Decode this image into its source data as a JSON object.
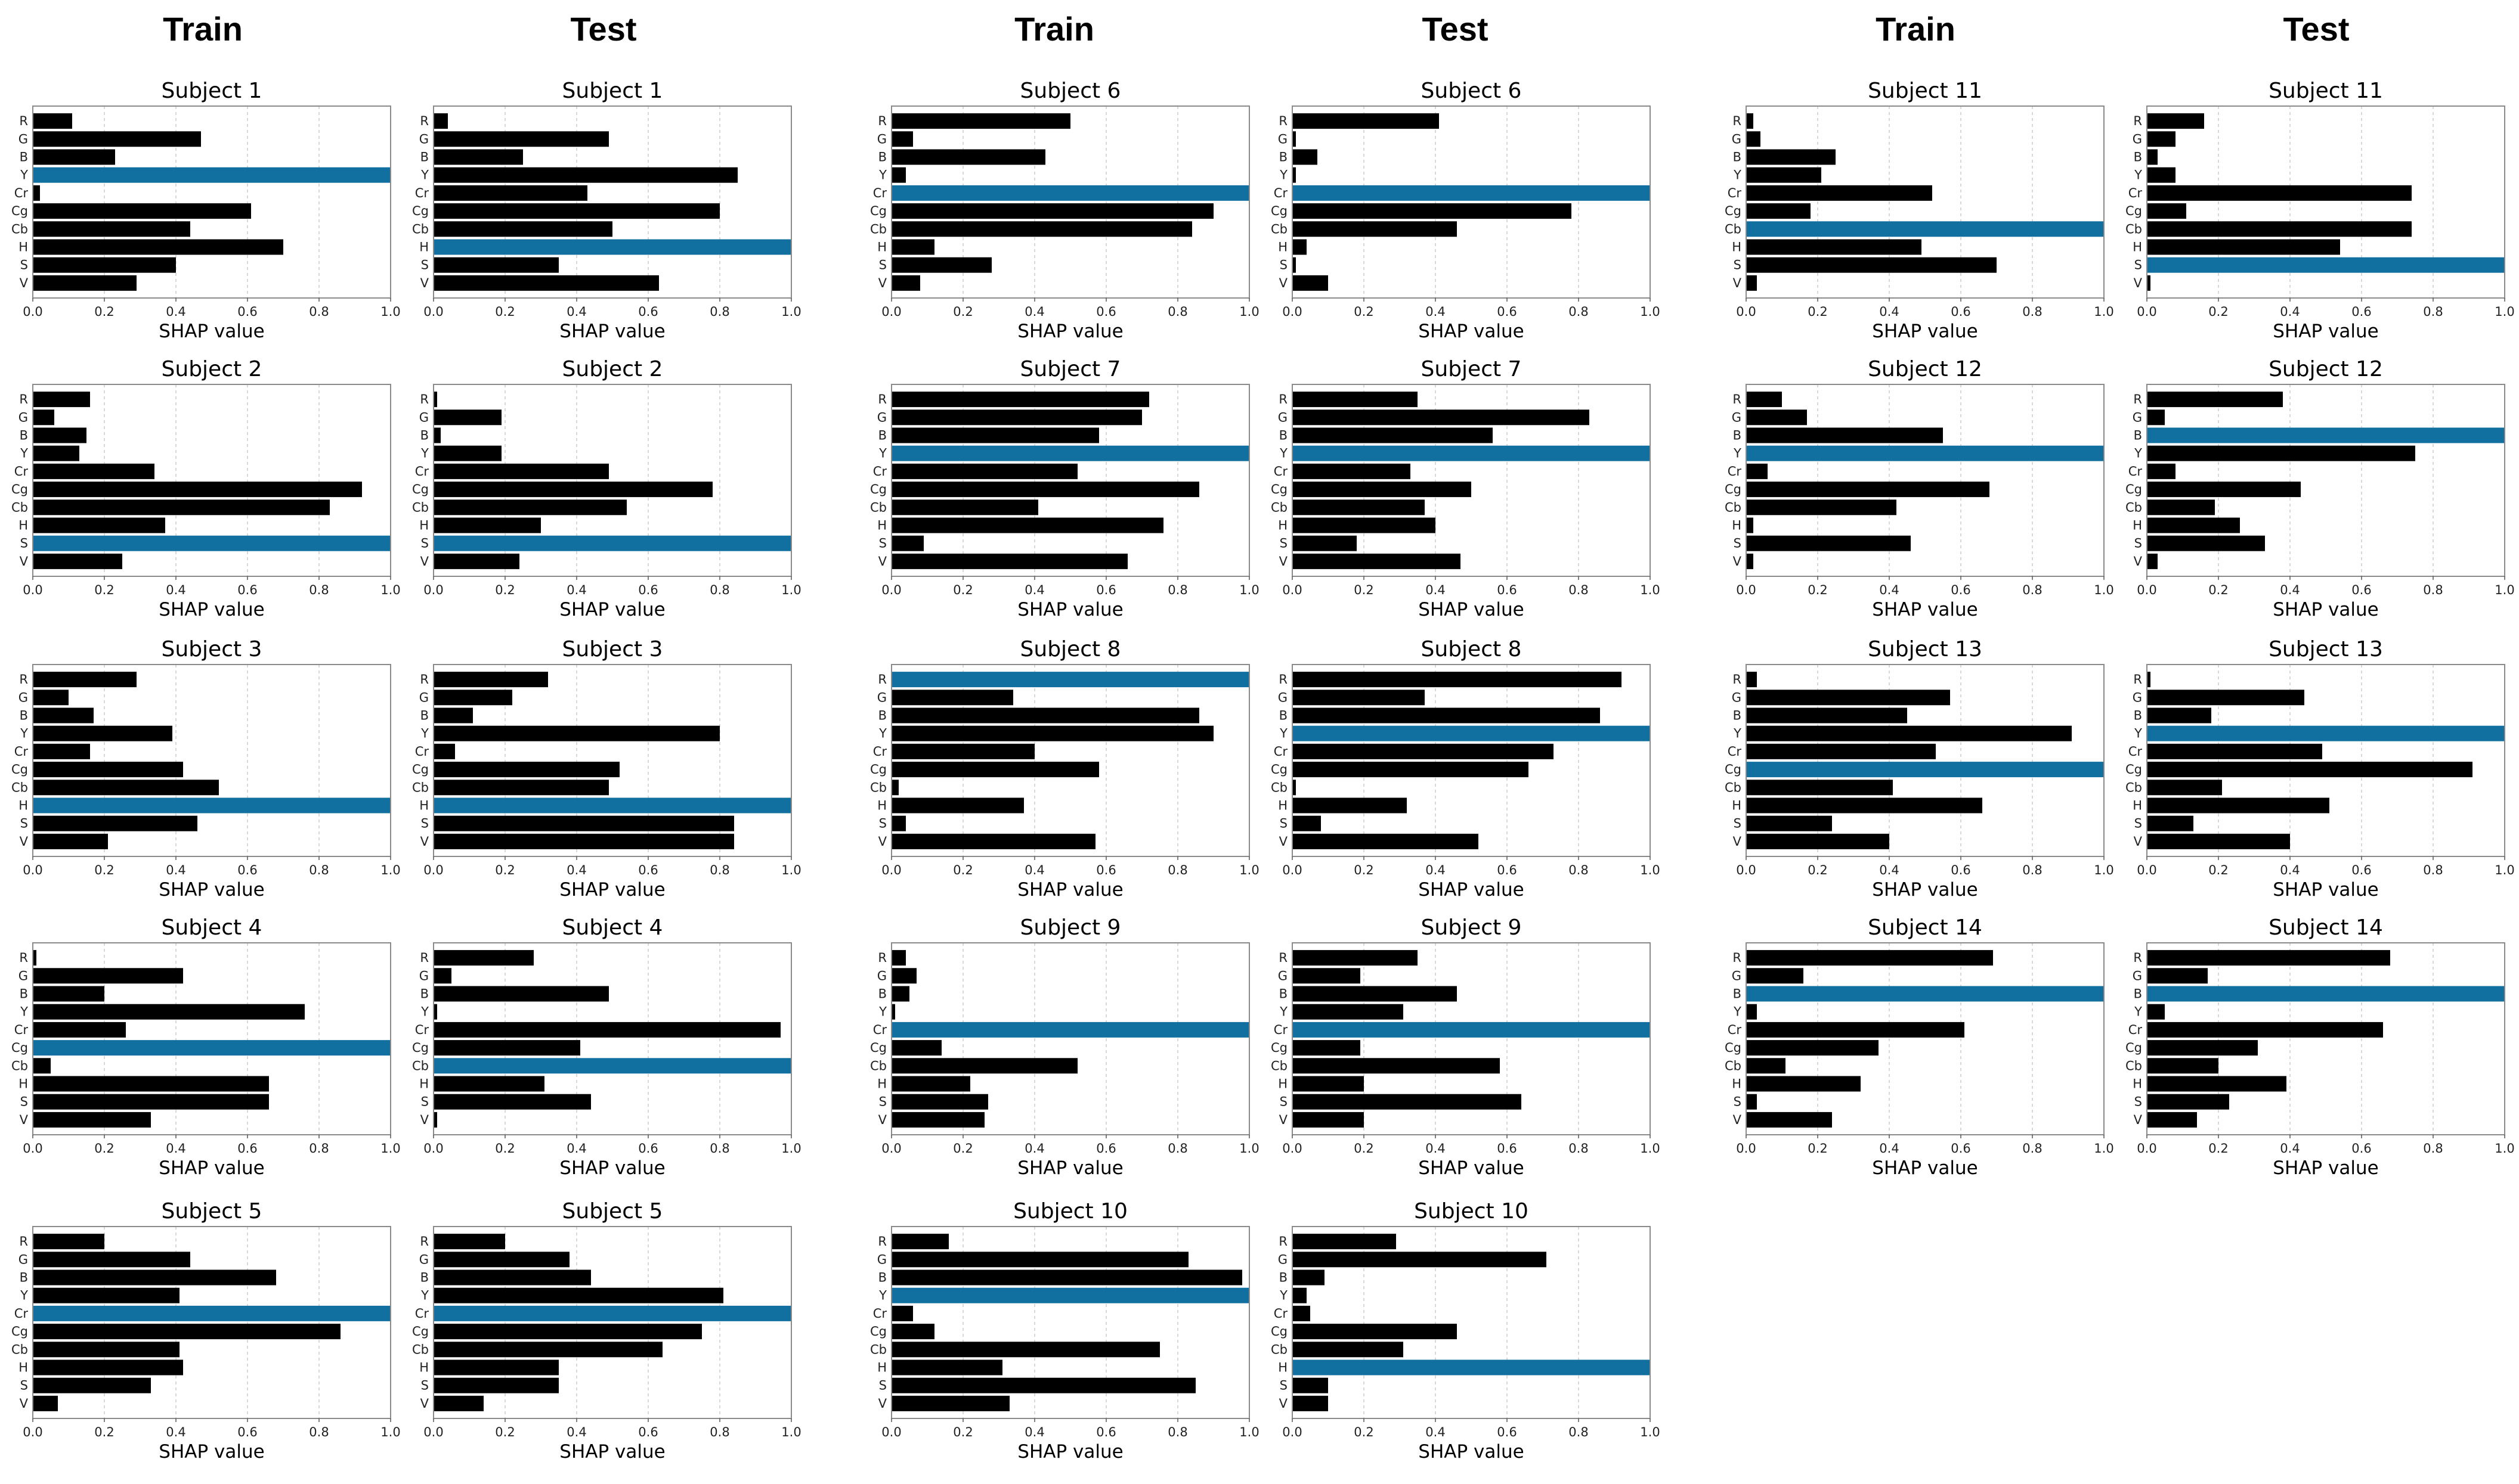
{
  "column_headers": [
    "Train",
    "Test",
    "Train",
    "Test",
    "Train",
    "Test"
  ],
  "x_ticks": [
    "0.0",
    "0.2",
    "0.4",
    "0.6",
    "0.8",
    "1.0"
  ],
  "features": [
    "R",
    "G",
    "B",
    "Y",
    "Cr",
    "Cg",
    "Cb",
    "H",
    "S",
    "V"
  ],
  "xlabel": "SHAP value",
  "colors": {
    "bar": "#000000",
    "highlight": "#1170a0"
  },
  "chart_data": [
    {
      "type": "bar",
      "orientation": "horizontal",
      "title": "Subject 1",
      "split": "Train",
      "xlabel": "SHAP value",
      "xlim": [
        0,
        1
      ],
      "categories": [
        "R",
        "G",
        "B",
        "Y",
        "Cr",
        "Cg",
        "Cb",
        "H",
        "S",
        "V"
      ],
      "values": [
        0.11,
        0.47,
        0.23,
        1.0,
        0.02,
        0.61,
        0.44,
        0.7,
        0.4,
        0.29
      ]
    },
    {
      "type": "bar",
      "orientation": "horizontal",
      "title": "Subject 1",
      "split": "Test",
      "xlabel": "SHAP value",
      "xlim": [
        0,
        1
      ],
      "categories": [
        "R",
        "G",
        "B",
        "Y",
        "Cr",
        "Cg",
        "Cb",
        "H",
        "S",
        "V"
      ],
      "values": [
        0.04,
        0.49,
        0.25,
        0.85,
        0.43,
        0.8,
        0.5,
        1.0,
        0.35,
        0.63
      ]
    },
    {
      "type": "bar",
      "orientation": "horizontal",
      "title": "Subject 6",
      "split": "Train",
      "xlabel": "SHAP value",
      "xlim": [
        0,
        1
      ],
      "categories": [
        "R",
        "G",
        "B",
        "Y",
        "Cr",
        "Cg",
        "Cb",
        "H",
        "S",
        "V"
      ],
      "values": [
        0.5,
        0.06,
        0.43,
        0.04,
        1.0,
        0.9,
        0.84,
        0.12,
        0.28,
        0.08
      ]
    },
    {
      "type": "bar",
      "orientation": "horizontal",
      "title": "Subject 6",
      "split": "Test",
      "xlabel": "SHAP value",
      "xlim": [
        0,
        1
      ],
      "categories": [
        "R",
        "G",
        "B",
        "Y",
        "Cr",
        "Cg",
        "Cb",
        "H",
        "S",
        "V"
      ],
      "values": [
        0.41,
        0.01,
        0.07,
        0.01,
        1.0,
        0.78,
        0.46,
        0.04,
        0.01,
        0.1
      ]
    },
    {
      "type": "bar",
      "orientation": "horizontal",
      "title": "Subject 11",
      "split": "Train",
      "xlabel": "SHAP value",
      "xlim": [
        0,
        1
      ],
      "categories": [
        "R",
        "G",
        "B",
        "Y",
        "Cr",
        "Cg",
        "Cb",
        "H",
        "S",
        "V"
      ],
      "values": [
        0.02,
        0.04,
        0.25,
        0.21,
        0.52,
        0.18,
        1.0,
        0.49,
        0.7,
        0.03
      ]
    },
    {
      "type": "bar",
      "orientation": "horizontal",
      "title": "Subject 11",
      "split": "Test",
      "xlabel": "SHAP value",
      "xlim": [
        0,
        1
      ],
      "categories": [
        "R",
        "G",
        "B",
        "Y",
        "Cr",
        "Cg",
        "Cb",
        "H",
        "S",
        "V"
      ],
      "values": [
        0.16,
        0.08,
        0.03,
        0.08,
        0.74,
        0.11,
        0.74,
        0.54,
        1.0,
        0.01
      ]
    },
    {
      "type": "bar",
      "orientation": "horizontal",
      "title": "Subject 2",
      "split": "Train",
      "xlabel": "SHAP value",
      "xlim": [
        0,
        1
      ],
      "categories": [
        "R",
        "G",
        "B",
        "Y",
        "Cr",
        "Cg",
        "Cb",
        "H",
        "S",
        "V"
      ],
      "values": [
        0.16,
        0.06,
        0.15,
        0.13,
        0.34,
        0.92,
        0.83,
        0.37,
        1.0,
        0.25
      ]
    },
    {
      "type": "bar",
      "orientation": "horizontal",
      "title": "Subject 2",
      "split": "Test",
      "xlabel": "SHAP value",
      "xlim": [
        0,
        1
      ],
      "categories": [
        "R",
        "G",
        "B",
        "Y",
        "Cr",
        "Cg",
        "Cb",
        "H",
        "S",
        "V"
      ],
      "values": [
        0.01,
        0.19,
        0.02,
        0.19,
        0.49,
        0.78,
        0.54,
        0.3,
        1.0,
        0.24
      ]
    },
    {
      "type": "bar",
      "orientation": "horizontal",
      "title": "Subject 7",
      "split": "Train",
      "xlabel": "SHAP value",
      "xlim": [
        0,
        1
      ],
      "categories": [
        "R",
        "G",
        "B",
        "Y",
        "Cr",
        "Cg",
        "Cb",
        "H",
        "S",
        "V"
      ],
      "values": [
        0.72,
        0.7,
        0.58,
        1.0,
        0.52,
        0.86,
        0.41,
        0.76,
        0.09,
        0.66
      ]
    },
    {
      "type": "bar",
      "orientation": "horizontal",
      "title": "Subject 7",
      "split": "Test",
      "xlabel": "SHAP value",
      "xlim": [
        0,
        1
      ],
      "categories": [
        "R",
        "G",
        "B",
        "Y",
        "Cr",
        "Cg",
        "Cb",
        "H",
        "S",
        "V"
      ],
      "values": [
        0.35,
        0.83,
        0.56,
        1.0,
        0.33,
        0.5,
        0.37,
        0.4,
        0.18,
        0.47
      ]
    },
    {
      "type": "bar",
      "orientation": "horizontal",
      "title": "Subject 12",
      "split": "Train",
      "xlabel": "SHAP value",
      "xlim": [
        0,
        1
      ],
      "categories": [
        "R",
        "G",
        "B",
        "Y",
        "Cr",
        "Cg",
        "Cb",
        "H",
        "S",
        "V"
      ],
      "values": [
        0.1,
        0.17,
        0.55,
        1.0,
        0.06,
        0.68,
        0.42,
        0.02,
        0.46,
        0.02
      ]
    },
    {
      "type": "bar",
      "orientation": "horizontal",
      "title": "Subject 12",
      "split": "Test",
      "xlabel": "SHAP value",
      "xlim": [
        0,
        1
      ],
      "categories": [
        "R",
        "G",
        "B",
        "Y",
        "Cr",
        "Cg",
        "Cb",
        "H",
        "S",
        "V"
      ],
      "values": [
        0.38,
        0.05,
        1.0,
        0.75,
        0.08,
        0.43,
        0.19,
        0.26,
        0.33,
        0.03
      ]
    },
    {
      "type": "bar",
      "orientation": "horizontal",
      "title": "Subject 3",
      "split": "Train",
      "xlabel": "SHAP value",
      "xlim": [
        0,
        1
      ],
      "categories": [
        "R",
        "G",
        "B",
        "Y",
        "Cr",
        "Cg",
        "Cb",
        "H",
        "S",
        "V"
      ],
      "values": [
        0.29,
        0.1,
        0.17,
        0.39,
        0.16,
        0.42,
        0.52,
        1.0,
        0.46,
        0.21
      ]
    },
    {
      "type": "bar",
      "orientation": "horizontal",
      "title": "Subject 3",
      "split": "Test",
      "xlabel": "SHAP value",
      "xlim": [
        0,
        1
      ],
      "categories": [
        "R",
        "G",
        "B",
        "Y",
        "Cr",
        "Cg",
        "Cb",
        "H",
        "S",
        "V"
      ],
      "values": [
        0.32,
        0.22,
        0.11,
        0.8,
        0.06,
        0.52,
        0.49,
        1.0,
        0.84,
        0.84
      ]
    },
    {
      "type": "bar",
      "orientation": "horizontal",
      "title": "Subject 8",
      "split": "Train",
      "xlabel": "SHAP value",
      "xlim": [
        0,
        1
      ],
      "categories": [
        "R",
        "G",
        "B",
        "Y",
        "Cr",
        "Cg",
        "Cb",
        "H",
        "S",
        "V"
      ],
      "values": [
        1.0,
        0.34,
        0.86,
        0.9,
        0.4,
        0.58,
        0.02,
        0.37,
        0.04,
        0.57
      ]
    },
    {
      "type": "bar",
      "orientation": "horizontal",
      "title": "Subject 8",
      "split": "Test",
      "xlabel": "SHAP value",
      "xlim": [
        0,
        1
      ],
      "categories": [
        "R",
        "G",
        "B",
        "Y",
        "Cr",
        "Cg",
        "Cb",
        "H",
        "S",
        "V"
      ],
      "values": [
        0.92,
        0.37,
        0.86,
        1.0,
        0.73,
        0.66,
        0.01,
        0.32,
        0.08,
        0.52
      ]
    },
    {
      "type": "bar",
      "orientation": "horizontal",
      "title": "Subject 13",
      "split": "Train",
      "xlabel": "SHAP value",
      "xlim": [
        0,
        1
      ],
      "categories": [
        "R",
        "G",
        "B",
        "Y",
        "Cr",
        "Cg",
        "Cb",
        "H",
        "S",
        "V"
      ],
      "values": [
        0.03,
        0.57,
        0.45,
        0.91,
        0.53,
        1.0,
        0.41,
        0.66,
        0.24,
        0.4
      ]
    },
    {
      "type": "bar",
      "orientation": "horizontal",
      "title": "Subject 13",
      "split": "Test",
      "xlabel": "SHAP value",
      "xlim": [
        0,
        1
      ],
      "categories": [
        "R",
        "G",
        "B",
        "Y",
        "Cr",
        "Cg",
        "Cb",
        "H",
        "S",
        "V"
      ],
      "values": [
        0.01,
        0.44,
        0.18,
        1.0,
        0.49,
        0.91,
        0.21,
        0.51,
        0.13,
        0.4
      ]
    },
    {
      "type": "bar",
      "orientation": "horizontal",
      "title": "Subject 4",
      "split": "Train",
      "xlabel": "SHAP value",
      "xlim": [
        0,
        1
      ],
      "categories": [
        "R",
        "G",
        "B",
        "Y",
        "Cr",
        "Cg",
        "Cb",
        "H",
        "S",
        "V"
      ],
      "values": [
        0.01,
        0.42,
        0.2,
        0.76,
        0.26,
        1.0,
        0.05,
        0.66,
        0.66,
        0.33
      ]
    },
    {
      "type": "bar",
      "orientation": "horizontal",
      "title": "Subject 4",
      "split": "Test",
      "xlabel": "SHAP value",
      "xlim": [
        0,
        1
      ],
      "categories": [
        "R",
        "G",
        "B",
        "Y",
        "Cr",
        "Cg",
        "Cb",
        "H",
        "S",
        "V"
      ],
      "values": [
        0.28,
        0.05,
        0.49,
        0.01,
        0.97,
        0.41,
        1.0,
        0.31,
        0.44,
        0.01
      ]
    },
    {
      "type": "bar",
      "orientation": "horizontal",
      "title": "Subject 9",
      "split": "Train",
      "xlabel": "SHAP value",
      "xlim": [
        0,
        1
      ],
      "categories": [
        "R",
        "G",
        "B",
        "Y",
        "Cr",
        "Cg",
        "Cb",
        "H",
        "S",
        "V"
      ],
      "values": [
        0.04,
        0.07,
        0.05,
        0.01,
        1.0,
        0.14,
        0.52,
        0.22,
        0.27,
        0.26
      ]
    },
    {
      "type": "bar",
      "orientation": "horizontal",
      "title": "Subject 9",
      "split": "Test",
      "xlabel": "SHAP value",
      "xlim": [
        0,
        1
      ],
      "categories": [
        "R",
        "G",
        "B",
        "Y",
        "Cr",
        "Cg",
        "Cb",
        "H",
        "S",
        "V"
      ],
      "values": [
        0.35,
        0.19,
        0.46,
        0.31,
        1.0,
        0.19,
        0.58,
        0.2,
        0.64,
        0.2
      ]
    },
    {
      "type": "bar",
      "orientation": "horizontal",
      "title": "Subject 14",
      "split": "Train",
      "xlabel": "SHAP value",
      "xlim": [
        0,
        1
      ],
      "categories": [
        "R",
        "G",
        "B",
        "Y",
        "Cr",
        "Cg",
        "Cb",
        "H",
        "S",
        "V"
      ],
      "values": [
        0.69,
        0.16,
        1.0,
        0.03,
        0.61,
        0.37,
        0.11,
        0.32,
        0.03,
        0.24
      ]
    },
    {
      "type": "bar",
      "orientation": "horizontal",
      "title": "Subject 14",
      "split": "Test",
      "xlabel": "SHAP value",
      "xlim": [
        0,
        1
      ],
      "categories": [
        "R",
        "G",
        "B",
        "Y",
        "Cr",
        "Cg",
        "Cb",
        "H",
        "S",
        "V"
      ],
      "values": [
        0.68,
        0.17,
        1.0,
        0.05,
        0.66,
        0.31,
        0.2,
        0.39,
        0.23,
        0.14
      ]
    },
    {
      "type": "bar",
      "orientation": "horizontal",
      "title": "Subject 5",
      "split": "Train",
      "xlabel": "SHAP value",
      "xlim": [
        0,
        1
      ],
      "categories": [
        "R",
        "G",
        "B",
        "Y",
        "Cr",
        "Cg",
        "Cb",
        "H",
        "S",
        "V"
      ],
      "values": [
        0.2,
        0.44,
        0.68,
        0.41,
        1.0,
        0.86,
        0.41,
        0.42,
        0.33,
        0.07
      ]
    },
    {
      "type": "bar",
      "orientation": "horizontal",
      "title": "Subject 5",
      "split": "Test",
      "xlabel": "SHAP value",
      "xlim": [
        0,
        1
      ],
      "categories": [
        "R",
        "G",
        "B",
        "Y",
        "Cr",
        "Cg",
        "Cb",
        "H",
        "S",
        "V"
      ],
      "values": [
        0.2,
        0.38,
        0.44,
        0.81,
        1.0,
        0.75,
        0.64,
        0.35,
        0.35,
        0.14
      ]
    },
    {
      "type": "bar",
      "orientation": "horizontal",
      "title": "Subject 10",
      "split": "Train",
      "xlabel": "SHAP value",
      "xlim": [
        0,
        1
      ],
      "categories": [
        "R",
        "G",
        "B",
        "Y",
        "Cr",
        "Cg",
        "Cb",
        "H",
        "S",
        "V"
      ],
      "values": [
        0.16,
        0.83,
        0.98,
        1.0,
        0.06,
        0.12,
        0.75,
        0.31,
        0.85,
        0.33
      ]
    },
    {
      "type": "bar",
      "orientation": "horizontal",
      "title": "Subject 10",
      "split": "Test",
      "xlabel": "SHAP value",
      "xlim": [
        0,
        1
      ],
      "categories": [
        "R",
        "G",
        "B",
        "Y",
        "Cr",
        "Cg",
        "Cb",
        "H",
        "S",
        "V"
      ],
      "values": [
        0.29,
        0.71,
        0.09,
        0.04,
        0.05,
        0.46,
        0.31,
        1.0,
        0.1,
        0.1
      ]
    }
  ]
}
